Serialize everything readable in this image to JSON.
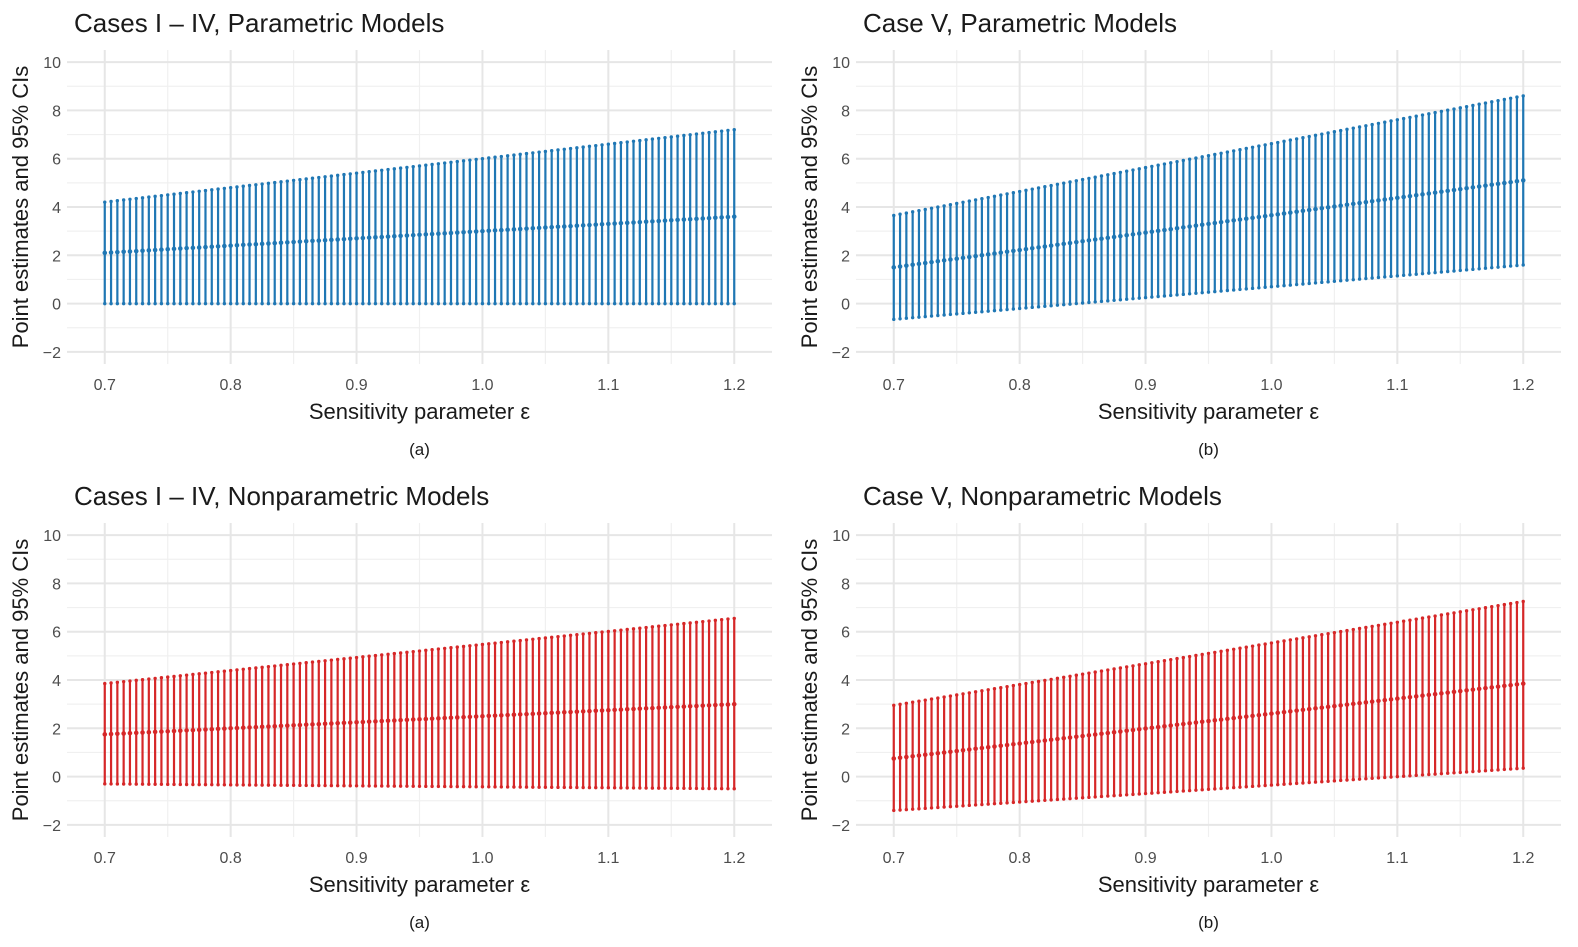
{
  "chart_data": [
    {
      "type": "errorbar",
      "title": "Cases I – IV, Parametric Models",
      "caption": "(a)",
      "xlabel": "Sensitivity parameter ε",
      "ylabel": "Point estimates and 95% CIs",
      "color": "#1f77b4",
      "xlim": [
        0.67,
        1.23
      ],
      "ylim": [
        -2.5,
        10.5
      ],
      "xticks": [
        0.7,
        0.8,
        0.9,
        1.0,
        1.1,
        1.2
      ],
      "xtick_labels": [
        "0.7",
        "0.8",
        "0.9",
        "1.0",
        "1.1",
        "1.2"
      ],
      "yticks": [
        -2,
        0,
        2,
        4,
        6,
        8,
        10
      ],
      "ytick_labels": [
        "−2",
        "0",
        "2",
        "4",
        "6",
        "8",
        "10"
      ],
      "x_range": [
        0.7,
        1.2
      ],
      "n_points": 101,
      "estimate": [
        2.1,
        3.6
      ],
      "ci_lower": [
        0.0,
        0.0
      ],
      "ci_upper": [
        4.2,
        7.2
      ]
    },
    {
      "type": "errorbar",
      "title": "Case V, Parametric Models",
      "caption": "(b)",
      "xlabel": "Sensitivity parameter ε",
      "ylabel": "Point estimates and 95% CIs",
      "color": "#1f77b4",
      "xlim": [
        0.67,
        1.23
      ],
      "ylim": [
        -2.5,
        10.5
      ],
      "xticks": [
        0.7,
        0.8,
        0.9,
        1.0,
        1.1,
        1.2
      ],
      "xtick_labels": [
        "0.7",
        "0.8",
        "0.9",
        "1.0",
        "1.1",
        "1.2"
      ],
      "yticks": [
        -2,
        0,
        2,
        4,
        6,
        8,
        10
      ],
      "ytick_labels": [
        "−2",
        "0",
        "2",
        "4",
        "6",
        "8",
        "10"
      ],
      "x_range": [
        0.7,
        1.2
      ],
      "n_points": 101,
      "estimate": [
        1.5,
        5.1
      ],
      "ci_lower": [
        -0.65,
        1.6
      ],
      "ci_upper": [
        3.65,
        8.6
      ]
    },
    {
      "type": "errorbar",
      "title": "Cases I – IV, Nonparametric Models",
      "caption": "(a)",
      "xlabel": "Sensitivity parameter ε",
      "ylabel": "Point estimates and 95% CIs",
      "color": "#d62728",
      "xlim": [
        0.67,
        1.23
      ],
      "ylim": [
        -2.5,
        10.5
      ],
      "xticks": [
        0.7,
        0.8,
        0.9,
        1.0,
        1.1,
        1.2
      ],
      "xtick_labels": [
        "0.7",
        "0.8",
        "0.9",
        "1.0",
        "1.1",
        "1.2"
      ],
      "yticks": [
        -2,
        0,
        2,
        4,
        6,
        8,
        10
      ],
      "ytick_labels": [
        "−2",
        "0",
        "2",
        "4",
        "6",
        "8",
        "10"
      ],
      "x_range": [
        0.7,
        1.2
      ],
      "n_points": 101,
      "estimate": [
        1.75,
        3.0
      ],
      "ci_lower": [
        -0.3,
        -0.5
      ],
      "ci_upper": [
        3.85,
        6.55
      ]
    },
    {
      "type": "errorbar",
      "title": "Case V, Nonparametric Models",
      "caption": "(b)",
      "xlabel": "Sensitivity parameter ε",
      "ylabel": "Point estimates and 95% CIs",
      "color": "#d62728",
      "xlim": [
        0.67,
        1.23
      ],
      "ylim": [
        -2.5,
        10.5
      ],
      "xticks": [
        0.7,
        0.8,
        0.9,
        1.0,
        1.1,
        1.2
      ],
      "xtick_labels": [
        "0.7",
        "0.8",
        "0.9",
        "1.0",
        "1.1",
        "1.2"
      ],
      "yticks": [
        -2,
        0,
        2,
        4,
        6,
        8,
        10
      ],
      "ytick_labels": [
        "−2",
        "0",
        "2",
        "4",
        "6",
        "8",
        "10"
      ],
      "x_range": [
        0.7,
        1.2
      ],
      "n_points": 101,
      "estimate": [
        0.75,
        3.85
      ],
      "ci_lower": [
        -1.4,
        0.35
      ],
      "ci_upper": [
        2.95,
        7.25
      ]
    }
  ]
}
